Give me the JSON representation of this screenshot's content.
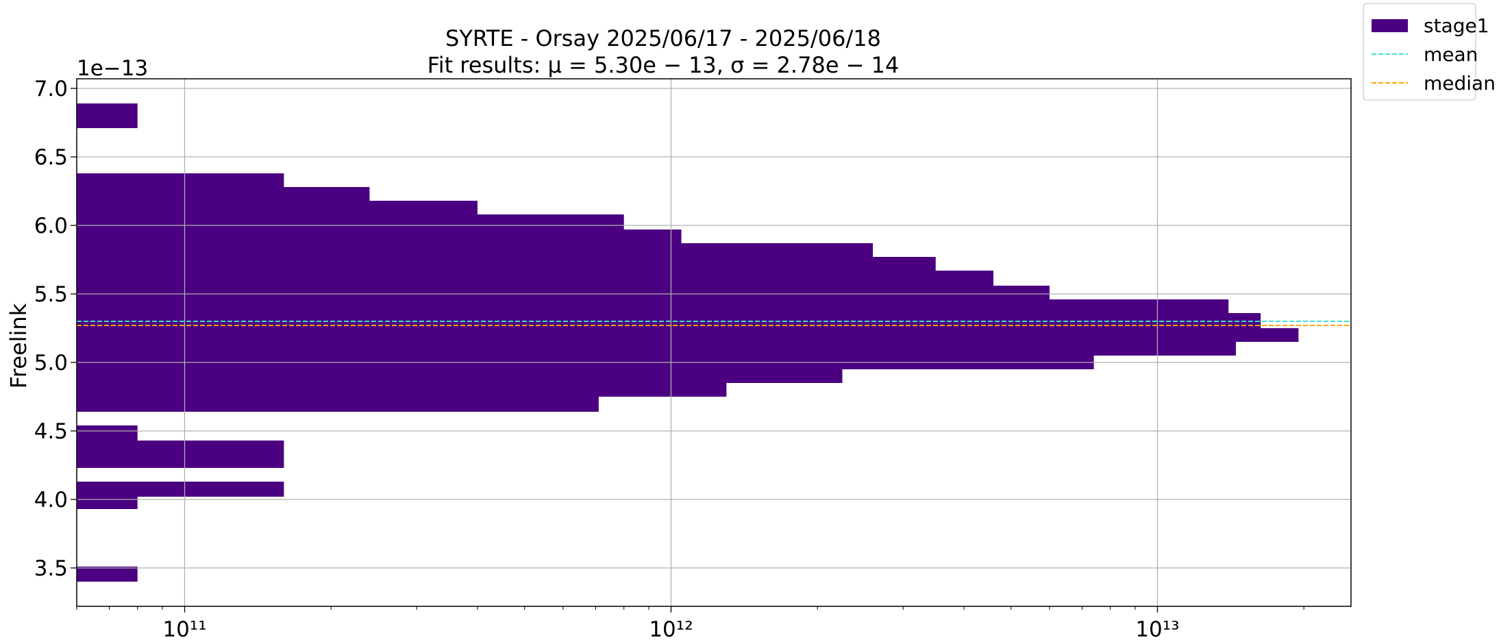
{
  "chart_data": {
    "type": "histogram",
    "orientation": "horizontal",
    "title": "SYRTE - Orsay 2025/06/17 - 2025/06/18",
    "subtitle": "Fit results: μ = 5.30e − 13,  σ = 2.78e − 14",
    "xlabel": "",
    "ylabel": "Freelink",
    "offset_text": "1e−13",
    "x_scale": "log",
    "xlim": [
      60000000000.0,
      25000000000000.0
    ],
    "ylim": [
      3.22,
      7.07
    ],
    "y_multiplier": 1e-13,
    "grid": true,
    "legend_position": "outside top-right",
    "x_ticks": [
      {
        "value": 100000000000.0,
        "label": "10¹¹"
      },
      {
        "value": 1000000000000.0,
        "label": "10¹²"
      },
      {
        "value": 10000000000000.0,
        "label": "10¹³"
      }
    ],
    "y_ticks": [
      {
        "value": 3.5,
        "label": "3.5"
      },
      {
        "value": 4.0,
        "label": "4.0"
      },
      {
        "value": 4.5,
        "label": "4.5"
      },
      {
        "value": 5.0,
        "label": "5.0"
      },
      {
        "value": 5.5,
        "label": "5.5"
      },
      {
        "value": 6.0,
        "label": "6.0"
      },
      {
        "value": 6.5,
        "label": "6.5"
      },
      {
        "value": 7.0,
        "label": "7.0"
      }
    ],
    "series": [
      {
        "name": "stage1",
        "color": "#4b0082",
        "bins": [
          {
            "y0": 3.4,
            "y1": 3.51,
            "count": 80000000000.0
          },
          {
            "y0": 3.93,
            "y1": 4.02,
            "count": 80000000000.0
          },
          {
            "y0": 4.02,
            "y1": 4.13,
            "count": 160000000000.0
          },
          {
            "y0": 4.23,
            "y1": 4.43,
            "count": 160000000000.0
          },
          {
            "y0": 4.43,
            "y1": 4.54,
            "count": 80000000000.0
          },
          {
            "y0": 4.64,
            "y1": 4.75,
            "count": 710000000000.0
          },
          {
            "y0": 4.75,
            "y1": 4.85,
            "count": 1300000000000.0
          },
          {
            "y0": 4.85,
            "y1": 4.95,
            "count": 2250000000000.0
          },
          {
            "y0": 4.95,
            "y1": 5.05,
            "count": 7400000000000.0
          },
          {
            "y0": 5.05,
            "y1": 5.15,
            "count": 14500000000000.0
          },
          {
            "y0": 5.15,
            "y1": 5.25,
            "count": 19500000000000.0
          },
          {
            "y0": 5.25,
            "y1": 5.36,
            "count": 16300000000000.0
          },
          {
            "y0": 5.36,
            "y1": 5.46,
            "count": 14000000000000.0
          },
          {
            "y0": 5.46,
            "y1": 5.56,
            "count": 6000000000000.0
          },
          {
            "y0": 5.56,
            "y1": 5.67,
            "count": 4600000000000.0
          },
          {
            "y0": 5.67,
            "y1": 5.77,
            "count": 3500000000000.0
          },
          {
            "y0": 5.77,
            "y1": 5.87,
            "count": 2600000000000.0
          },
          {
            "y0": 5.87,
            "y1": 5.97,
            "count": 1050000000000.0
          },
          {
            "y0": 5.97,
            "y1": 6.08,
            "count": 800000000000.0
          },
          {
            "y0": 6.08,
            "y1": 6.18,
            "count": 400000000000.0
          },
          {
            "y0": 6.18,
            "y1": 6.28,
            "count": 240000000000.0
          },
          {
            "y0": 6.28,
            "y1": 6.38,
            "count": 160000000000.0
          },
          {
            "y0": 6.71,
            "y1": 6.89,
            "count": 80000000000.0
          }
        ]
      }
    ],
    "lines": [
      {
        "name": "mean",
        "y": 5.3,
        "color": "#40e0d0",
        "style": "dashed"
      },
      {
        "name": "median",
        "y": 5.27,
        "color": "#ffa500",
        "style": "dashed"
      }
    ],
    "legend": [
      {
        "label": "stage1",
        "kind": "patch",
        "color": "#4b0082"
      },
      {
        "label": "mean",
        "kind": "line",
        "color": "#40e0d0"
      },
      {
        "label": "median",
        "kind": "line",
        "color": "#ffa500"
      }
    ]
  }
}
